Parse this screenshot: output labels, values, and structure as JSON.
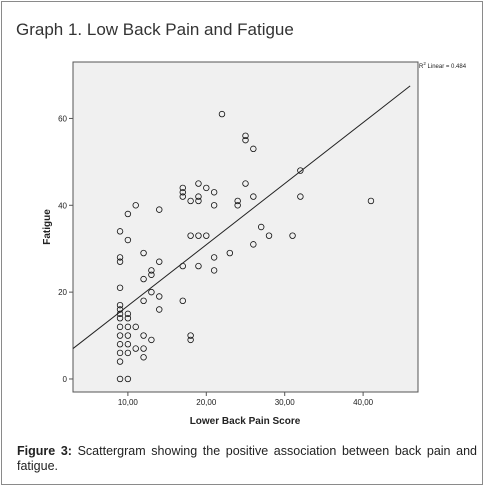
{
  "header": {
    "title": "Graph 1. Low Back Pain and Fatigue"
  },
  "caption": {
    "label": "Figure 3:",
    "text": " Scattergram showing the positive association between back pain and fatigue."
  },
  "chart_data": {
    "type": "scatter",
    "xlabel": "Lower Back Pain Score",
    "ylabel": "Fatigue",
    "xlim": [
      3,
      47
    ],
    "ylim": [
      -3,
      73
    ],
    "x_ticks": [
      10,
      20,
      30,
      40
    ],
    "x_tick_labels": [
      "10,00",
      "20,00",
      "30,00",
      "40,00"
    ],
    "y_ticks": [
      0,
      20,
      40,
      60
    ],
    "y_tick_labels": [
      "0",
      "20",
      "40",
      "60"
    ],
    "grid": false,
    "fit_line": {
      "label": "R² Linear = 0.484",
      "label_prefix": "R",
      "label_sup": "2",
      "label_suffix": " Linear = 0.484",
      "x": [
        3,
        46
      ],
      "y": [
        7,
        67.5
      ]
    },
    "points": [
      [
        9,
        0
      ],
      [
        10,
        0
      ],
      [
        9,
        4
      ],
      [
        9,
        6
      ],
      [
        9,
        8
      ],
      [
        9,
        10
      ],
      [
        9,
        12
      ],
      [
        9,
        14
      ],
      [
        9,
        15
      ],
      [
        9,
        16
      ],
      [
        9,
        17
      ],
      [
        9,
        21
      ],
      [
        9,
        27
      ],
      [
        9,
        28
      ],
      [
        9,
        34
      ],
      [
        10,
        6
      ],
      [
        10,
        8
      ],
      [
        10,
        10
      ],
      [
        10,
        12
      ],
      [
        10,
        14
      ],
      [
        10,
        15
      ],
      [
        10,
        32
      ],
      [
        10,
        38
      ],
      [
        11,
        7
      ],
      [
        11,
        12
      ],
      [
        11,
        40
      ],
      [
        12,
        5
      ],
      [
        12,
        7
      ],
      [
        12,
        10
      ],
      [
        12,
        18
      ],
      [
        12,
        23
      ],
      [
        12,
        29
      ],
      [
        13,
        9
      ],
      [
        13,
        20
      ],
      [
        13,
        24
      ],
      [
        13,
        25
      ],
      [
        14,
        16
      ],
      [
        14,
        19
      ],
      [
        14,
        27
      ],
      [
        14,
        39
      ],
      [
        17,
        18
      ],
      [
        17,
        26
      ],
      [
        17,
        42
      ],
      [
        17,
        43
      ],
      [
        17,
        44
      ],
      [
        18,
        9
      ],
      [
        18,
        10
      ],
      [
        18,
        33
      ],
      [
        18,
        41
      ],
      [
        19,
        26
      ],
      [
        19,
        33
      ],
      [
        19,
        41
      ],
      [
        19,
        42
      ],
      [
        19,
        45
      ],
      [
        20,
        33
      ],
      [
        20,
        44
      ],
      [
        21,
        25
      ],
      [
        21,
        28
      ],
      [
        21,
        40
      ],
      [
        21,
        43
      ],
      [
        22,
        61
      ],
      [
        23,
        29
      ],
      [
        24,
        40
      ],
      [
        24,
        41
      ],
      [
        25,
        45
      ],
      [
        25,
        55
      ],
      [
        25,
        56
      ],
      [
        26,
        31
      ],
      [
        26,
        42
      ],
      [
        26,
        53
      ],
      [
        27,
        35
      ],
      [
        28,
        33
      ],
      [
        31,
        33
      ],
      [
        32,
        42
      ],
      [
        32,
        48
      ],
      [
        41,
        41
      ]
    ]
  }
}
